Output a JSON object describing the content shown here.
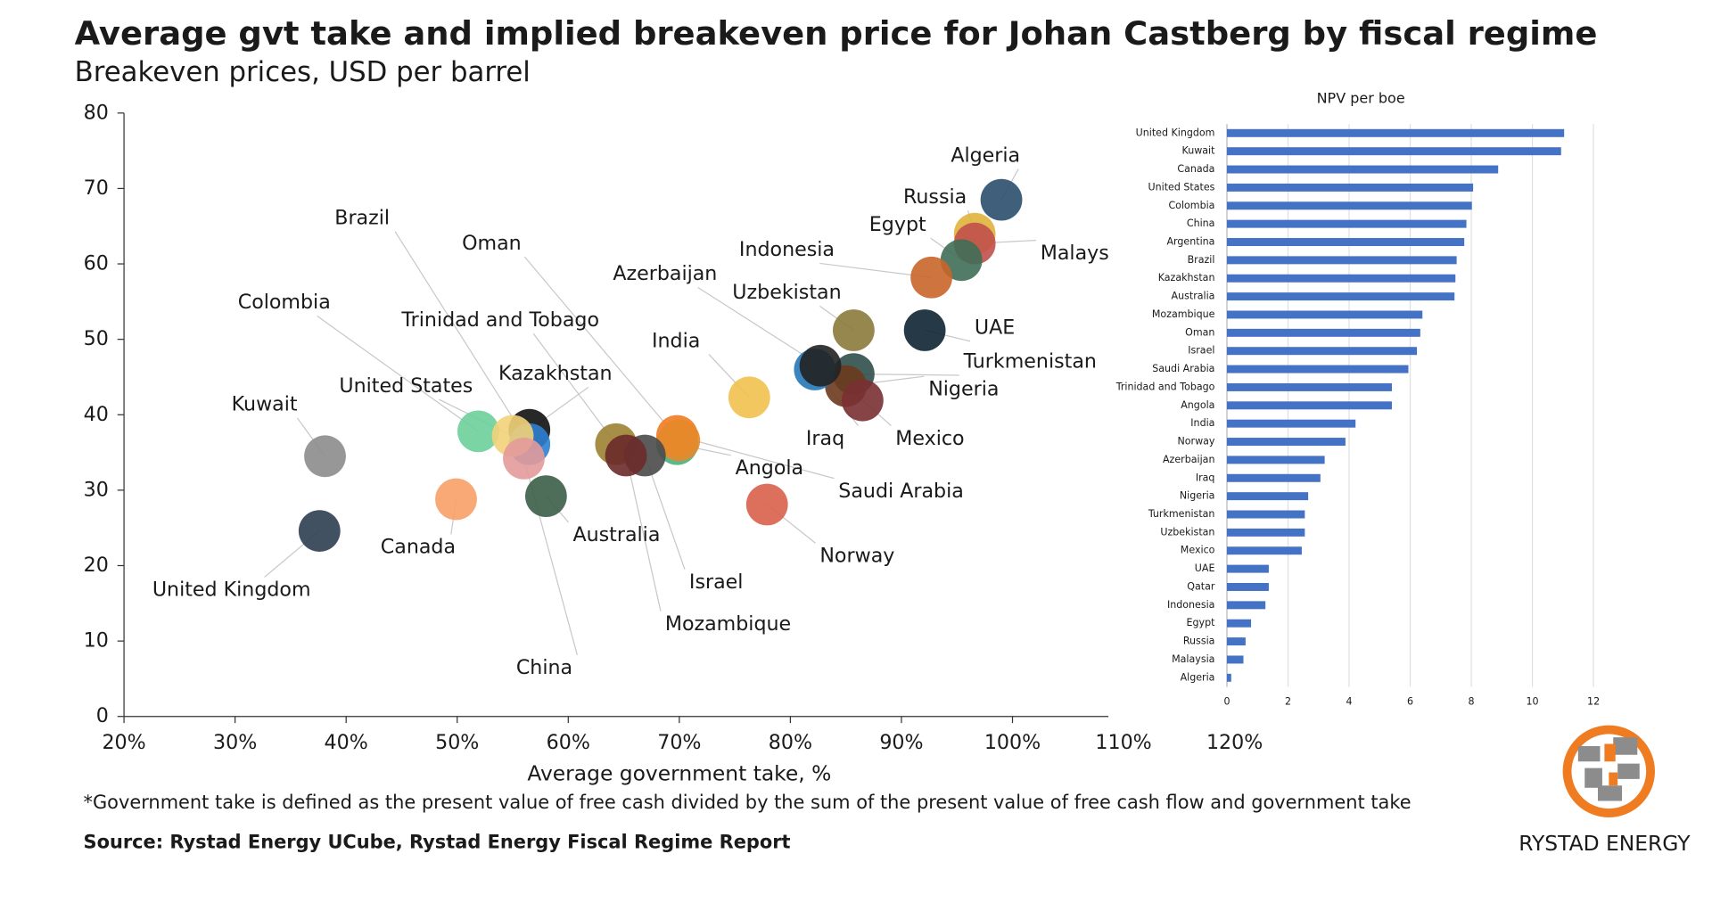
{
  "chart_data": [
    {
      "type": "scatter",
      "title": "Average gvt take and implied breakeven price for Johan Castberg by fiscal regime",
      "subtitle": "Breakeven prices, USD per barrel",
      "x_label": "Average government take, %",
      "footnote": "*Government take is defined as the present value of free cash divided by the sum of the present value of free cash flow and government take",
      "source": "Source: Rystad Energy UCube, Rystad Energy Fiscal Regime Report",
      "labels": [
        "Algeria",
        "Russia",
        "Malaysia",
        "Egypt",
        "Indonesia",
        "UAE",
        "Uzbekistan",
        "Turkmenistan",
        "Nigeria",
        "Mexico",
        "Iraq",
        "Azerbaijan",
        "India",
        "Norway",
        "Angola",
        "Saudi Arabia",
        "Oman",
        "Trinidad and Tobago",
        "Israel",
        "Mozambique",
        "Kazakhstan",
        "Brazil",
        "Colombia",
        "United States",
        "China",
        "Australia",
        "Kuwait",
        "Canada",
        "United Kingdom"
      ],
      "x": [
        99,
        96.6,
        96.6,
        95.4,
        92.7,
        92.1,
        85.7,
        85.7,
        85.0,
        86.5,
        82.2,
        82.7,
        76.3,
        77.9,
        69.8,
        69.8,
        70.0,
        64.3,
        66.9,
        65.2,
        56.5,
        56.5,
        51.9,
        55.0,
        56.0,
        58.0,
        38.1,
        49.9,
        37.6
      ],
      "values": [
        68.5,
        64.0,
        62.7,
        60.5,
        58.2,
        51.2,
        51.2,
        45.4,
        43.8,
        41.9,
        46.0,
        46.5,
        42.3,
        28.1,
        36.1,
        37.2,
        36.6,
        36.1,
        34.6,
        34.6,
        38.0,
        36.1,
        37.8,
        37.2,
        34.2,
        29.2,
        34.5,
        28.8,
        24.6
      ],
      "colors": [
        "#2b4e6b",
        "#e0b33a",
        "#c0504d",
        "#3f6e57",
        "#c8652a",
        "#0e2333",
        "#8a7a3a",
        "#2f4f4a",
        "#6b3a1e",
        "#7a3033",
        "#2678b8",
        "#222222",
        "#f2c14e",
        "#d9604a",
        "#4caf7d",
        "#f07c22",
        "#e58a2a",
        "#9c8232",
        "#4a4a4a",
        "#6b2a2a",
        "#111111",
        "#2d7fd0",
        "#6ccf9a",
        "#f3d27a",
        "#e39a9a",
        "#3c5e48",
        "#8c8c8c",
        "#f7a066",
        "#2d3e50"
      ],
      "xlim": [
        20,
        120
      ],
      "xticks": [
        {
          "value": 20,
          "label": "20%"
        },
        {
          "value": 30,
          "label": "30%"
        },
        {
          "value": 40,
          "label": "40%"
        },
        {
          "value": 50,
          "label": "50%"
        },
        {
          "value": 60,
          "label": "60%"
        },
        {
          "value": 70,
          "label": "70%"
        },
        {
          "value": 80,
          "label": "80%"
        },
        {
          "value": 90,
          "label": "90%"
        },
        {
          "value": 100,
          "label": "100%"
        },
        {
          "value": 110,
          "label": "110%"
        },
        {
          "value": 120,
          "label": "120%"
        }
      ],
      "ylim": [
        0,
        80
      ],
      "yticks": [
        0,
        10,
        20,
        30,
        40,
        50,
        60,
        70,
        80
      ]
    },
    {
      "type": "bar",
      "orientation": "horizontal",
      "title": "NPV per boe",
      "categories": [
        "United Kingdom",
        "Kuwait",
        "Canada",
        "United States",
        "Colombia",
        "China",
        "Argentina",
        "Brazil",
        "Kazakhstan",
        "Australia",
        "Mozambique",
        "Oman",
        "Israel",
        "Saudi Arabia",
        "Trinidad and Tobago",
        "Angola",
        "India",
        "Norway",
        "Azerbaijan",
        "Iraq",
        "Nigeria",
        "Turkmenistan",
        "Uzbekistan",
        "Mexico",
        "UAE",
        "Qatar",
        "Indonesia",
        "Egypt",
        "Russia",
        "Malaysia",
        "Algeria"
      ],
      "values": [
        11.04,
        10.94,
        8.88,
        8.06,
        8.02,
        7.84,
        7.77,
        7.52,
        7.48,
        7.45,
        6.4,
        6.33,
        6.22,
        5.94,
        5.4,
        5.4,
        4.21,
        3.88,
        3.2,
        3.06,
        2.66,
        2.55,
        2.55,
        2.45,
        1.37,
        1.37,
        1.26,
        0.79,
        0.61,
        0.54,
        0.14
      ],
      "color": "#4472c4",
      "xlim": [
        0,
        12
      ],
      "xticks": [
        0,
        2,
        4,
        6,
        8,
        10,
        12
      ],
      "grid": true
    }
  ],
  "logo": "RYSTAD ENERGY"
}
